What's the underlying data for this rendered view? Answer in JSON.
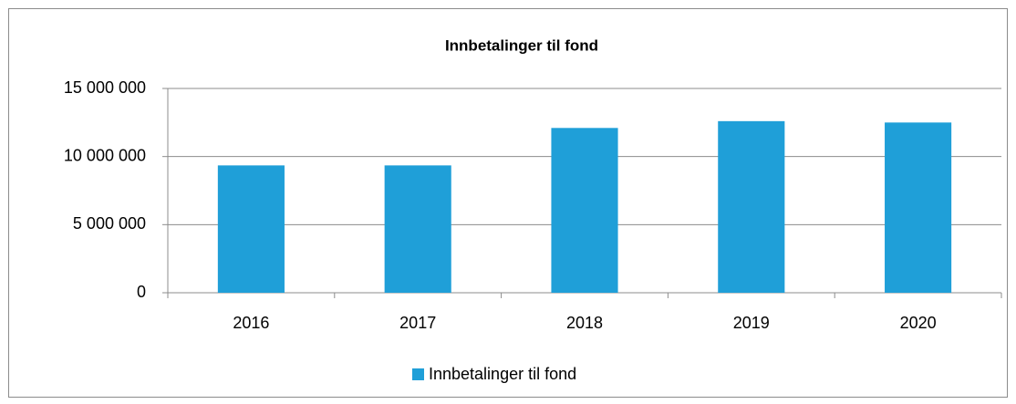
{
  "chart_data": {
    "type": "bar",
    "title": "Innbetalinger til fond",
    "categories": [
      "2016",
      "2017",
      "2018",
      "2019",
      "2020"
    ],
    "series": [
      {
        "name": "Innbetalinger til fond",
        "color": "#1f9fd8",
        "values": [
          9350000,
          9350000,
          12100000,
          12600000,
          12500000
        ]
      }
    ],
    "ylim": [
      0,
      15000000
    ],
    "yticks": [
      0,
      {
        "value": 5000000,
        "label": "5 000 000"
      },
      {
        "value": 10000000,
        "label": "10 000 000"
      },
      {
        "value": 15000000,
        "label": "15 000 000"
      }
    ],
    "grid": true,
    "legend": "bottom"
  }
}
